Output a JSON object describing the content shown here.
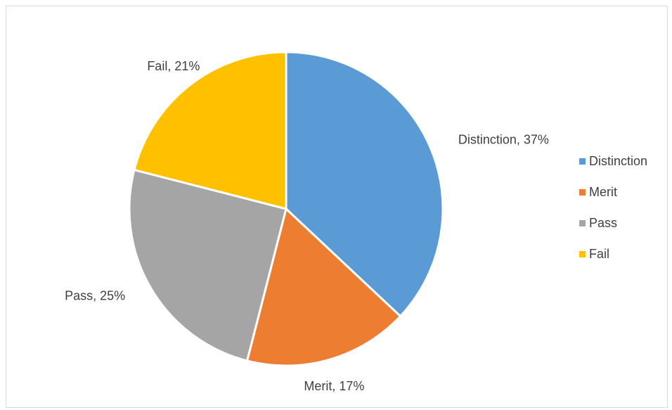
{
  "chart_data": {
    "type": "pie",
    "categories": [
      "Distinction",
      "Merit",
      "Pass",
      "Fail"
    ],
    "values": [
      37,
      17,
      25,
      21
    ],
    "colors": [
      "#5b9bd5",
      "#ed7d31",
      "#a5a5a5",
      "#ffc000"
    ],
    "data_labels": [
      "Distinction, 37%",
      "Merit, 17%",
      "Pass, 25%",
      "Fail, 21%"
    ],
    "legend": {
      "position": "right",
      "entries": [
        "Distinction",
        "Merit",
        "Pass",
        "Fail"
      ]
    },
    "title": ""
  }
}
